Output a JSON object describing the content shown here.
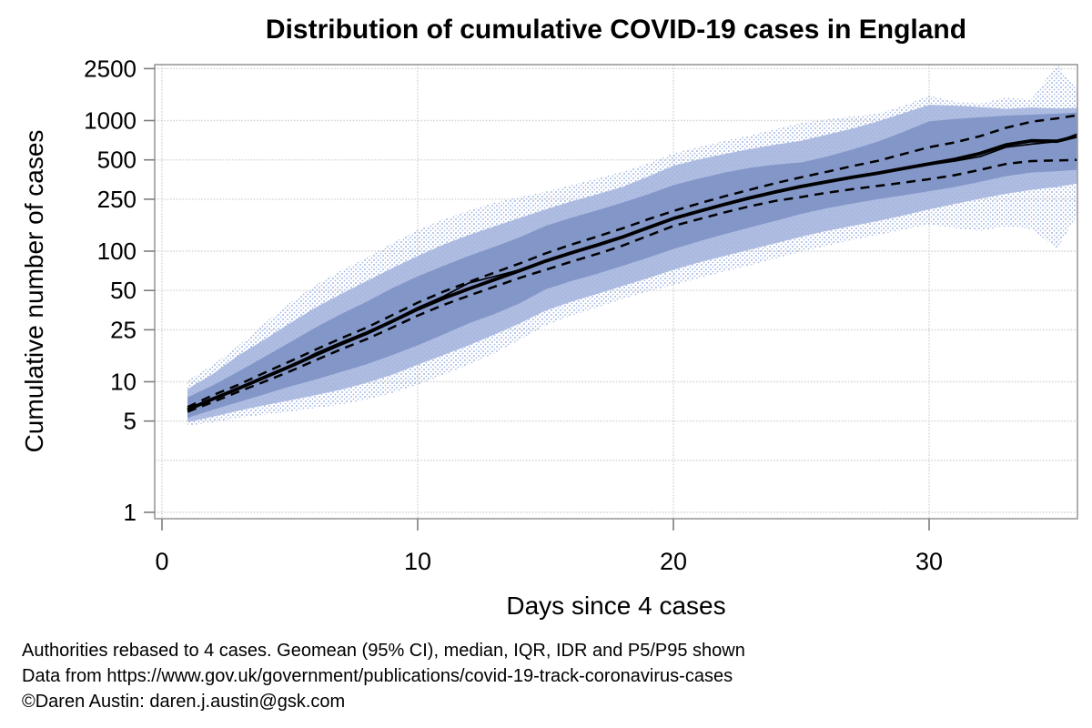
{
  "figure": {
    "title": "Distribution of cumulative COVID-19 cases in England",
    "footer_line1": "Authorities rebased to 4 cases. Geomean (95% CI), median, IQR, IDR and P5/P95 shown",
    "footer_line2": "Data from https://www.gov.uk/government/publications/covid-19-track-coronavirus-cases",
    "footer_line3": "©Daren Austin: daren.j.austin@gsk.com"
  },
  "chart_data": {
    "type": "line",
    "title": "Distribution of cumulative COVID-19 cases in England",
    "xlabel": "Days since 4 cases",
    "ylabel": "Cumulative number of cases",
    "yscale": "log",
    "xlim": [
      0,
      36
    ],
    "ylim": [
      1,
      2700
    ],
    "xticks": [
      0,
      10,
      20,
      30
    ],
    "yticks": [
      2500,
      1000,
      500,
      250,
      100,
      50,
      25,
      10,
      5,
      1
    ],
    "ygrid_unlabeled": [
      2.5
    ],
    "grid": true,
    "legend_note": "Geomean (95% CI), median, IQR, IDR and P5/P95 shown",
    "days": [
      1,
      2,
      3,
      4,
      5,
      6,
      7,
      8,
      9,
      10,
      11,
      12,
      13,
      14,
      15,
      16,
      17,
      18,
      19,
      20,
      21,
      22,
      23,
      24,
      25,
      26,
      27,
      28,
      29,
      30,
      31,
      32,
      33,
      34,
      35,
      35.8
    ],
    "series": [
      {
        "name": "geomean",
        "style": "solid-thick",
        "values": [
          6.1,
          7.4,
          8.9,
          10.8,
          13.1,
          16,
          19.5,
          23.5,
          29,
          36,
          43.5,
          51.5,
          60.5,
          71,
          84,
          97,
          111,
          128,
          151,
          178,
          202,
          228,
          256,
          284,
          313,
          340,
          368,
          396,
          430,
          466,
          505,
          560,
          650,
          700,
          695,
          760
        ]
      },
      {
        "name": "median",
        "style": "solid-thin",
        "values": [
          6,
          7.3,
          9,
          11,
          13,
          16.5,
          20,
          24,
          29.5,
          37,
          45,
          57,
          64,
          72,
          84,
          97,
          112,
          129,
          152,
          178,
          203,
          230,
          258,
          287,
          316,
          344,
          372,
          400,
          428,
          460,
          490,
          530,
          625,
          660,
          690,
          790
        ]
      },
      {
        "name": "ci95_lower",
        "style": "dashed",
        "values": [
          5.9,
          7,
          8.4,
          10,
          12,
          14.6,
          17.7,
          21.2,
          26,
          32.1,
          38.7,
          45.6,
          53.4,
          62.5,
          72,
          83,
          95,
          110,
          131,
          156,
          176,
          198,
          221,
          243,
          260,
          280,
          298,
          316,
          335,
          356,
          382,
          420,
          465,
          490,
          495,
          500
        ]
      },
      {
        "name": "ci95_upper",
        "style": "dashed",
        "values": [
          6.4,
          7.9,
          9.5,
          11.7,
          14.3,
          17.6,
          21.5,
          26,
          32.3,
          40.3,
          48.9,
          58.1,
          68.5,
          80.6,
          96,
          112,
          129,
          149,
          175,
          203,
          232,
          263,
          296,
          332,
          368,
          405,
          448,
          492,
          555,
          625,
          680,
          760,
          880,
          980,
          1040,
          1100
        ]
      }
    ],
    "bands": [
      {
        "name": "p5_p95",
        "fill": "stipple",
        "lo": [
          4.6,
          4.9,
          5.3,
          5.6,
          5.9,
          6.3,
          6.7,
          7.3,
          8.2,
          9.5,
          11.3,
          13.5,
          16.5,
          21,
          27,
          32,
          37,
          43,
          49,
          55,
          62,
          70,
          78,
          88,
          99,
          110,
          122,
          133,
          146,
          160,
          150,
          143,
          155,
          148,
          104,
          190
        ],
        "hi": [
          10.2,
          13.5,
          19,
          28,
          40,
          55,
          71,
          89,
          115,
          145,
          175,
          205,
          235,
          260,
          285,
          320,
          360,
          405,
          470,
          560,
          630,
          700,
          770,
          860,
          960,
          1020,
          1080,
          1130,
          1300,
          1560,
          1400,
          1350,
          1500,
          1450,
          2700,
          1700
        ]
      },
      {
        "name": "idr_p10_p90",
        "fill": "medium",
        "lo": [
          4.9,
          5.4,
          6,
          6.6,
          7.2,
          7.9,
          8.7,
          9.8,
          11.3,
          13.5,
          16,
          19,
          23,
          28,
          35,
          41,
          47,
          54,
          62,
          72,
          82,
          92,
          103,
          115,
          129,
          143,
          156,
          170,
          188,
          209,
          230,
          252,
          275,
          295,
          310,
          330
        ],
        "hi": [
          8.8,
          11.5,
          16,
          21,
          28,
          37,
          47,
          59,
          74,
          92,
          112,
          133,
          155,
          180,
          209,
          240,
          272,
          310,
          372,
          451,
          505,
          555,
          605,
          655,
          700,
          780,
          870,
          985,
          1140,
          1320,
          1300,
          1270,
          1230,
          1260,
          1240,
          1250
        ]
      },
      {
        "name": "iqr_p25_p75",
        "fill": "dark",
        "lo": [
          5.3,
          6.1,
          7,
          8,
          9.2,
          10.4,
          11.9,
          13.6,
          16,
          19,
          23,
          28,
          33,
          40,
          51,
          59,
          67,
          77,
          89,
          104,
          119,
          135,
          152,
          171,
          193,
          213,
          232,
          250,
          268,
          288,
          310,
          340,
          375,
          400,
          410,
          420
        ],
        "hi": [
          7.6,
          9.4,
          12,
          15.5,
          20,
          26,
          33,
          41,
          52,
          64,
          77,
          92,
          108,
          128,
          156,
          180,
          205,
          235,
          272,
          320,
          360,
          400,
          435,
          460,
          478,
          530,
          600,
          690,
          820,
          986,
          1030,
          1060,
          1090,
          1110,
          1130,
          1150
        ]
      }
    ],
    "colors": {
      "iqr_band": "#8296c8",
      "idr_band": "#b0bde2",
      "idr_dot": "#9dafd9",
      "stipple_dot": "#9fb4e0",
      "line": "#000000",
      "grid": "#d4d4d4",
      "frame": "#9b9b9b",
      "tick": "#7d7d7d",
      "text": "#000000"
    }
  }
}
